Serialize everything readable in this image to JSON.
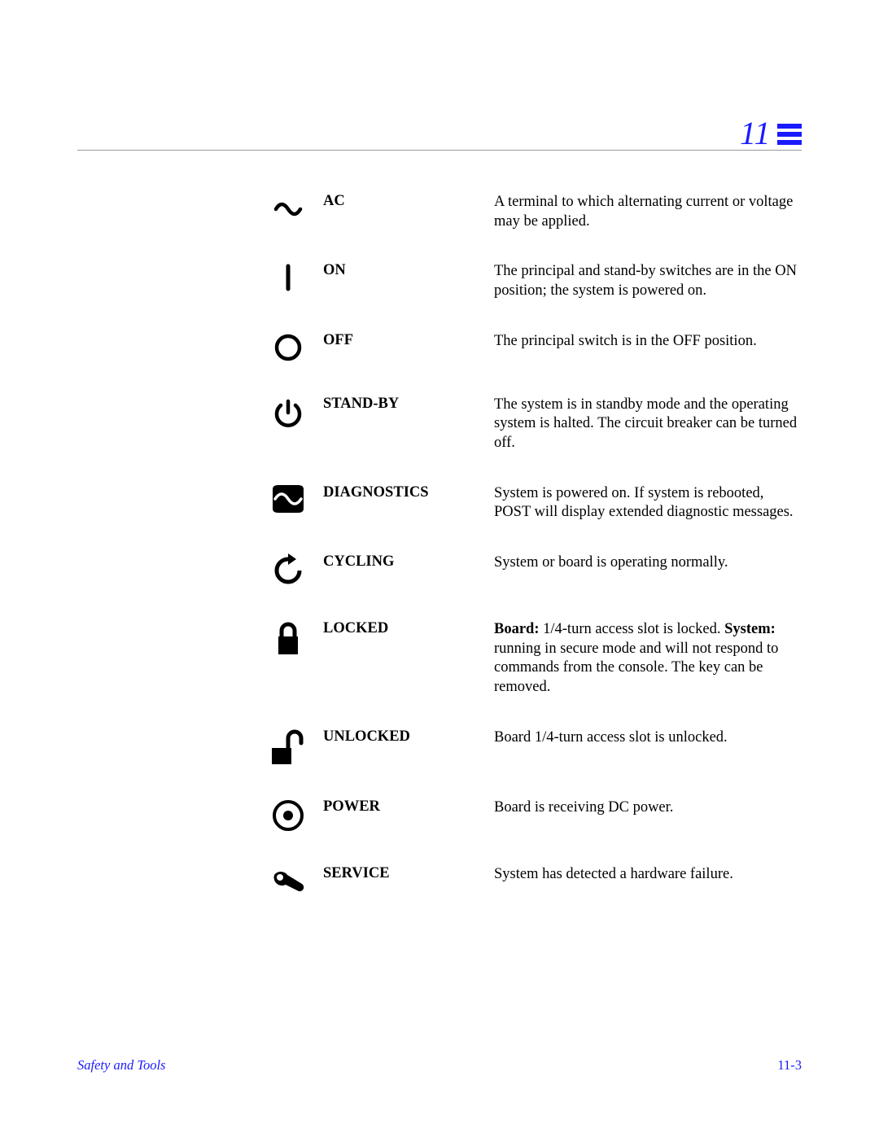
{
  "header": {
    "chapter_number": "11",
    "rule_color": "#999999",
    "accent_color": "#1a1aff"
  },
  "rows": [
    {
      "icon": "ac",
      "label": "AC",
      "desc_html": "A terminal to which alternating current or voltage may be applied."
    },
    {
      "icon": "on",
      "label": "ON",
      "desc_html": "The principal and stand-by switches are in the ON position; the system is powered on."
    },
    {
      "icon": "off",
      "label": "OFF",
      "desc_html": "The principal switch is in the OFF position."
    },
    {
      "icon": "standby",
      "label": "STAND-BY",
      "desc_html": "The system is in standby mode and the operating system is halted. The circuit breaker can be turned off."
    },
    {
      "icon": "diagnostics",
      "label": "DIAGNOSTICS",
      "desc_html": "System is powered on. If system is rebooted, POST will display extended diagnostic messages."
    },
    {
      "icon": "cycling",
      "label": "CYCLING",
      "desc_html": "System or board is operating normally."
    },
    {
      "icon": "locked",
      "label": "LOCKED",
      "desc_html": "<b>Board:</b> 1/4-turn access slot is locked. <b>System:</b> running in secure mode and will not respond to commands from the console. The key can be removed."
    },
    {
      "icon": "unlocked",
      "label": "UNLOCKED",
      "desc_html": "Board 1/4-turn access slot is unlocked."
    },
    {
      "icon": "power",
      "label": "POWER",
      "desc_html": "Board is receiving DC power."
    },
    {
      "icon": "service",
      "label": "SERVICE",
      "desc_html": "System has detected a hardware failure."
    }
  ],
  "footer": {
    "section_title": "Safety and Tools",
    "page_number": "11-3"
  },
  "style": {
    "font_family": "Palatino",
    "body_fontsize_pt": 14,
    "icon_color": "#000000",
    "background_color": "#ffffff"
  }
}
